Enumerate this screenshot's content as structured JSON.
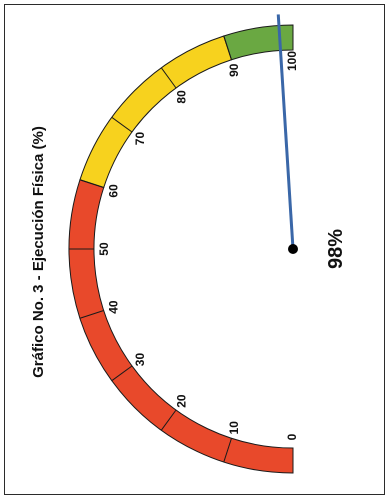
{
  "chart_data": {
    "type": "gauge",
    "title": "Gráfico No. 3 -  Ejecución Física (%)",
    "value": 98,
    "value_label": "98%",
    "min": 0,
    "max": 100,
    "ticks": [
      "0",
      "10",
      "20",
      "30",
      "40",
      "50",
      "60",
      "70",
      "80",
      "90",
      "100"
    ],
    "bands": [
      {
        "from": 0,
        "to": 60,
        "color": "#e8492b"
      },
      {
        "from": 60,
        "to": 90,
        "color": "#f7d21e"
      },
      {
        "from": 90,
        "to": 100,
        "color": "#6aa842"
      }
    ],
    "needle_color": "#3a67a8",
    "hub_color": "#000000"
  }
}
